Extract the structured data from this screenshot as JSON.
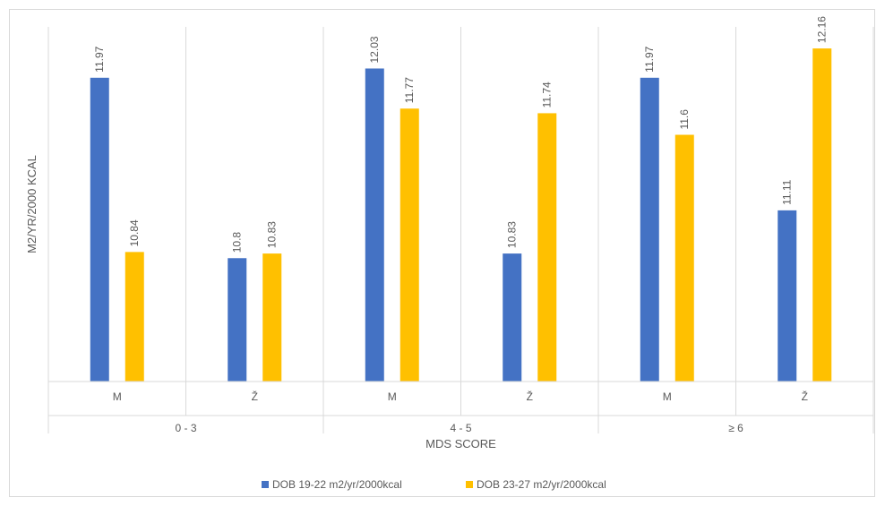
{
  "chart_data": {
    "type": "bar",
    "title": "",
    "xlabel": "MDS SCORE",
    "ylabel": "M2/YR/2000 KCAL",
    "groups": [
      {
        "label": "0 - 3",
        "categories": [
          "M",
          "Ž"
        ]
      },
      {
        "label": "4 - 5",
        "categories": [
          "M",
          "Ž"
        ]
      },
      {
        "label": "≥ 6",
        "categories": [
          "M",
          "Ž"
        ]
      }
    ],
    "categories": [
      "M",
      "Ž",
      "M",
      "Ž",
      "M",
      "Ž"
    ],
    "series": [
      {
        "name": "DOB 19-22 m2/yr/2000kcal",
        "color": "#4472c4",
        "values": [
          11.97,
          10.8,
          12.03,
          10.83,
          11.97,
          11.11
        ]
      },
      {
        "name": "DOB 23-27 m2/yr/2000kcal",
        "color": "#ffc000",
        "values": [
          10.84,
          10.83,
          11.77,
          11.74,
          11.6,
          12.16
        ]
      }
    ],
    "ylim": [
      10.0,
      12.3
    ],
    "grid": true,
    "legend_position": "bottom"
  }
}
